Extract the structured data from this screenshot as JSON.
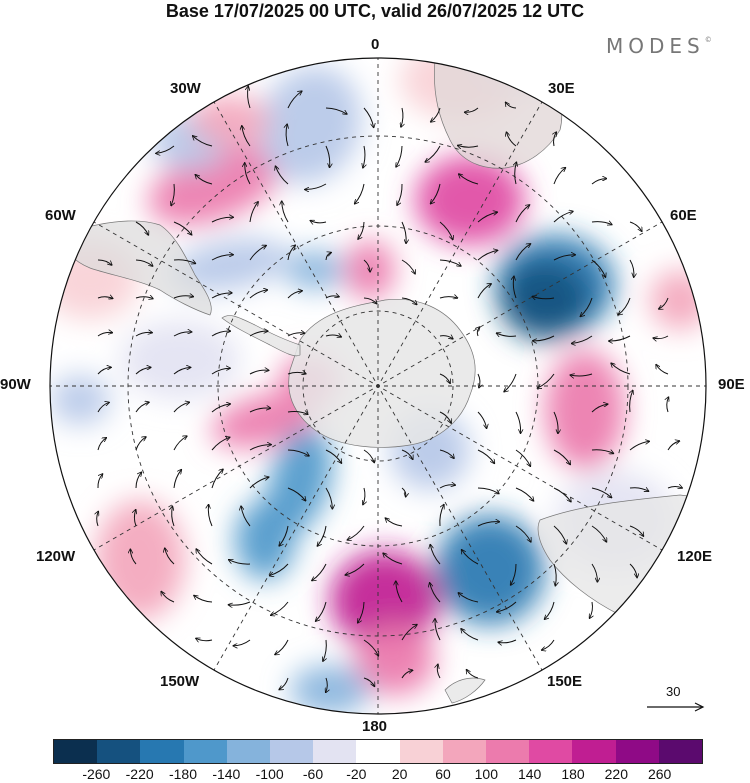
{
  "title": "Base 17/07/2025 00 UTC, valid 26/07/2025 12 UTC",
  "brand": "MODES",
  "brand_mark": "©",
  "map": {
    "projection": "south-polar-stereographic",
    "longitude_labels": {
      "top": "0",
      "top_right": "30E",
      "right_upper": "60E",
      "right": "90E",
      "right_lower": "120E",
      "bottom_right": "150E",
      "bottom": "180",
      "bottom_left": "150W",
      "left_lower": "120W",
      "left": "90W",
      "left_upper": "60W",
      "top_left": "30W"
    },
    "reference_vector_label": "30",
    "grid": "dashed"
  },
  "colorbar": {
    "colors": [
      "#0b2f4f",
      "#15517f",
      "#2778b1",
      "#4f98cb",
      "#85b3dc",
      "#b6c8e8",
      "#e3e3f2",
      "#ffffff",
      "#f8d1d6",
      "#f3a6bc",
      "#ec7bad",
      "#e04aa3",
      "#c01e92",
      "#8f0a86",
      "#5b0a6e"
    ],
    "tick_labels": [
      "-260",
      "-220",
      "-180",
      "-140",
      "-100",
      "-60",
      "-20",
      "20",
      "60",
      "100",
      "140",
      "180",
      "220",
      "260"
    ]
  }
}
